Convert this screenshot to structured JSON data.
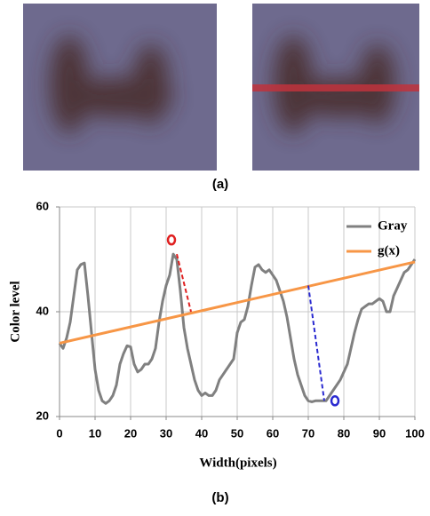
{
  "captions": [
    "(a)",
    "(b)"
  ],
  "chart_data": {
    "type": "line",
    "xlabel": "Width(pixels)",
    "ylabel": "Color level",
    "xlim": [
      0,
      100
    ],
    "xticks": [
      0,
      10,
      20,
      30,
      40,
      50,
      60,
      70,
      80,
      90,
      100
    ],
    "ylim": [
      20,
      60
    ],
    "yticks": [
      20,
      40,
      60
    ],
    "grid": true,
    "legend": "top-right",
    "series": [
      {
        "name": "Gray",
        "color": "#808080",
        "x": [
          0,
          1,
          2,
          3,
          4,
          5,
          6,
          7,
          8,
          9,
          10,
          11,
          12,
          13,
          14,
          15,
          16,
          17,
          18,
          19,
          20,
          21,
          22,
          23,
          24,
          25,
          26,
          27,
          28,
          29,
          30,
          31,
          32,
          33,
          34,
          35,
          36,
          37,
          38,
          39,
          40,
          41,
          42,
          43,
          44,
          45,
          46,
          47,
          48,
          49,
          50,
          51,
          52,
          53,
          54,
          55,
          56,
          57,
          58,
          59,
          60,
          61,
          62,
          63,
          64,
          65,
          66,
          67,
          68,
          69,
          70,
          71,
          72,
          73,
          74,
          75,
          76,
          77,
          78,
          79,
          80,
          81,
          82,
          83,
          84,
          85,
          86,
          87,
          88,
          89,
          90,
          91,
          92,
          93,
          94,
          95,
          96,
          97,
          98,
          99,
          100
        ],
        "values": [
          34,
          33,
          35,
          38,
          43,
          48,
          49,
          49.3,
          43,
          36,
          29,
          25,
          23,
          22.5,
          23,
          24,
          26,
          30,
          32,
          33.5,
          33.3,
          30,
          28.5,
          29,
          30,
          30,
          31,
          33,
          38,
          42,
          45,
          47,
          51,
          50,
          44,
          37,
          33,
          30,
          27,
          25,
          24,
          24.5,
          24,
          24,
          25,
          27,
          28,
          29,
          30,
          31,
          36,
          38,
          38.5,
          41,
          45,
          48.5,
          49,
          48,
          47.5,
          48,
          47,
          46,
          44,
          42,
          39,
          35,
          31,
          28,
          26,
          24,
          23,
          22.8,
          23,
          23,
          23,
          23,
          24,
          25,
          26,
          27,
          28.5,
          30,
          33,
          36,
          38.5,
          40.5,
          41,
          41.5,
          41.5,
          42,
          42.5,
          42,
          40,
          40,
          43,
          44.5,
          46,
          47.5,
          48,
          49,
          50
        ]
      },
      {
        "name": "g(x)",
        "color": "#f79646",
        "x": [
          0,
          100
        ],
        "values": [
          34,
          49.5
        ]
      }
    ]
  }
}
